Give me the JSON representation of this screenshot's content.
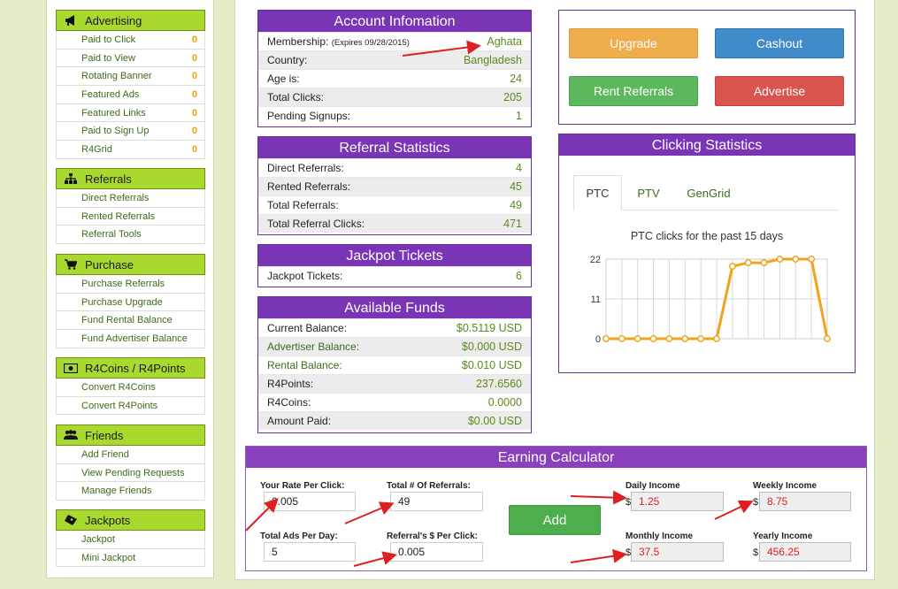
{
  "sidebar": {
    "advertising": {
      "title": "Advertising",
      "icon": "megaphone-icon",
      "items": [
        {
          "label": "Paid to Click",
          "count": "0"
        },
        {
          "label": "Paid to View",
          "count": "0"
        },
        {
          "label": "Rotating Banner",
          "count": "0"
        },
        {
          "label": "Featured Ads",
          "count": "0"
        },
        {
          "label": "Featured Links",
          "count": "0"
        },
        {
          "label": "Paid to Sign Up",
          "count": "0"
        },
        {
          "label": "R4Grid",
          "count": "0"
        }
      ]
    },
    "referrals": {
      "title": "Referrals",
      "icon": "sitemap-icon",
      "items": [
        {
          "label": "Direct Referrals"
        },
        {
          "label": "Rented Referrals"
        },
        {
          "label": "Referral Tools"
        }
      ]
    },
    "purchase": {
      "title": "Purchase",
      "icon": "cart-icon",
      "items": [
        {
          "label": "Purchase Referrals"
        },
        {
          "label": "Purchase Upgrade"
        },
        {
          "label": "Fund Rental Balance"
        },
        {
          "label": "Fund Advertiser Balance"
        }
      ]
    },
    "coins": {
      "title": "R4Coins / R4Points",
      "icon": "money-icon",
      "items": [
        {
          "label": "Convert R4Coins"
        },
        {
          "label": "Convert R4Points"
        }
      ]
    },
    "friends": {
      "title": "Friends",
      "icon": "users-icon",
      "items": [
        {
          "label": "Add Friend"
        },
        {
          "label": "View Pending Requests"
        },
        {
          "label": "Manage Friends"
        }
      ]
    },
    "jackpots": {
      "title": "Jackpots",
      "icon": "ticket-icon",
      "items": [
        {
          "label": "Jackpot"
        },
        {
          "label": "Mini Jackpot"
        }
      ]
    }
  },
  "account": {
    "title": "Account Infomation",
    "membership_label": "Membership:",
    "membership_expires": "(Expires 09/28/2015)",
    "membership_value": "Aghata",
    "rows": [
      {
        "label": "Country:",
        "value": "Bangladesh"
      },
      {
        "label": "Age is:",
        "value": "24"
      },
      {
        "label": "Total Clicks:",
        "value": "205"
      },
      {
        "label": "Pending Signups:",
        "value": "1"
      }
    ]
  },
  "referral_stats": {
    "title": "Referral Statistics",
    "rows": [
      {
        "label": "Direct Referrals:",
        "value": "4"
      },
      {
        "label": "Rented Referrals:",
        "value": "45"
      },
      {
        "label": "Total Referrals:",
        "value": "49"
      },
      {
        "label": "Total Referral Clicks:",
        "value": "471"
      }
    ]
  },
  "jackpot_tickets": {
    "title": "Jackpot Tickets",
    "rows": [
      {
        "label": "Jackpot Tickets:",
        "value": "6"
      }
    ]
  },
  "funds": {
    "title": "Available Funds",
    "rows": [
      {
        "label": "Current Balance:",
        "value": "$0.5119 USD"
      },
      {
        "label": "Advertiser Balance:",
        "value": "$0.000 USD"
      },
      {
        "label": "Rental Balance:",
        "value": "$0.010 USD"
      },
      {
        "label": "R4Points:",
        "value": "237.6560"
      },
      {
        "label": "R4Coins:",
        "value": "0.0000"
      },
      {
        "label": "Amount Paid:",
        "value": "$0.00 USD"
      }
    ]
  },
  "actions": {
    "upgrade": "Upgrade",
    "cashout": "Cashout",
    "rent_referrals": "Rent Referrals",
    "advertise": "Advertise"
  },
  "clicking": {
    "title": "Clicking Statistics",
    "tabs": [
      "PTC",
      "PTV",
      "GenGrid"
    ]
  },
  "chart_data": {
    "type": "line",
    "title": "PTC clicks for the past 15 days",
    "x": [
      1,
      2,
      3,
      4,
      5,
      6,
      7,
      8,
      9,
      10,
      11,
      12,
      13,
      14,
      15
    ],
    "series": [
      {
        "values": [
          0,
          0,
          0,
          0,
          0,
          0,
          0,
          0,
          20,
          21,
          21,
          22,
          22,
          22,
          0
        ]
      }
    ],
    "yticks": [
      "0",
      "11",
      "22"
    ],
    "ylim": [
      0,
      22
    ],
    "grid": true,
    "color": "#f2a31b"
  },
  "calculator": {
    "title": "Earning Calculator",
    "rate_label": "Your Rate Per Click:",
    "rate_value": "0.005",
    "refs_label": "Total # Of Referrals:",
    "refs_value": "49",
    "ads_label": "Total Ads Per Day:",
    "ads_value": "5",
    "ref_rate_label": "Referral's $ Per Click:",
    "ref_rate_value": "0.005",
    "add_button": "Add",
    "daily_label": "Daily Income",
    "daily_value": "1.25",
    "weekly_label": "Weekly Income",
    "weekly_value": "8.75",
    "monthly_label": "Monthly Income",
    "monthly_value": "37.5",
    "yearly_label": "Yearly Income",
    "yearly_value": "456.25",
    "currency": "$"
  },
  "colors": {
    "accent": "#7a35b6",
    "sidebar_head": "#a9d82e",
    "upgrade": "#f0ad4e",
    "cashout": "#428bca",
    "rent": "#5cb85c",
    "advertise": "#d9534f",
    "annotation_arrow": "#e02020"
  }
}
